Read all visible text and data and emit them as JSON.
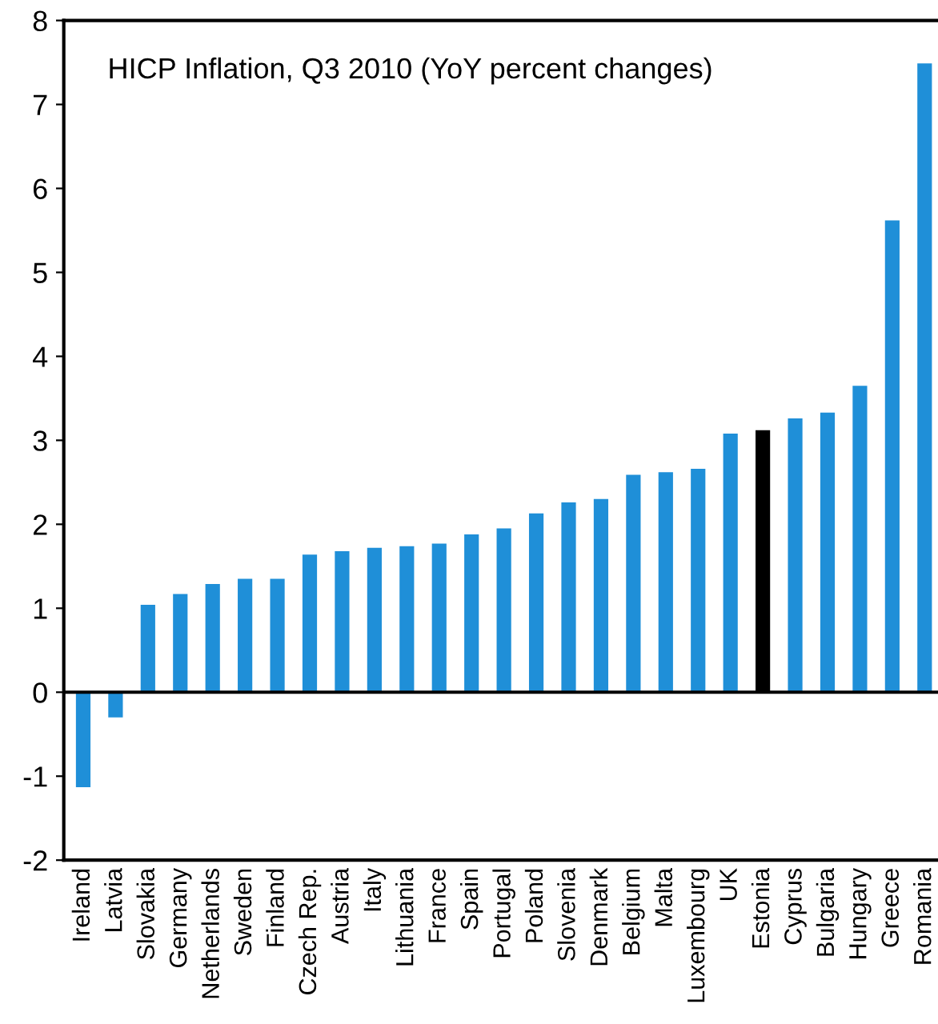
{
  "chart_data": {
    "type": "bar",
    "title": "HICP Inflation, Q3 2010 (YoY percent changes)",
    "categories": [
      "Ireland",
      "Latvia",
      "Slovakia",
      "Germany",
      "Netherlands",
      "Sweden",
      "Finland",
      "Czech Rep.",
      "Austria",
      "Italy",
      "Lithuania",
      "France",
      "Spain",
      "Portugal",
      "Poland",
      "Slovenia",
      "Denmark",
      "Belgium",
      "Malta",
      "Luxembourg",
      "UK",
      "Estonia",
      "Cyprus",
      "Bulgaria",
      "Hungary",
      "Greece",
      "Romania"
    ],
    "values": [
      -1.13,
      -0.3,
      1.04,
      1.17,
      1.29,
      1.35,
      1.35,
      1.64,
      1.68,
      1.72,
      1.74,
      1.77,
      1.88,
      1.95,
      2.13,
      2.26,
      2.3,
      2.59,
      2.62,
      2.66,
      3.08,
      3.12,
      3.26,
      3.33,
      3.65,
      5.62,
      7.49
    ],
    "colors": [
      "#1f8fd8",
      "#1f8fd8",
      "#1f8fd8",
      "#1f8fd8",
      "#1f8fd8",
      "#1f8fd8",
      "#1f8fd8",
      "#1f8fd8",
      "#1f8fd8",
      "#1f8fd8",
      "#1f8fd8",
      "#1f8fd8",
      "#1f8fd8",
      "#1f8fd8",
      "#1f8fd8",
      "#1f8fd8",
      "#1f8fd8",
      "#1f8fd8",
      "#1f8fd8",
      "#1f8fd8",
      "#1f8fd8",
      "#000000",
      "#1f8fd8",
      "#1f8fd8",
      "#1f8fd8",
      "#1f8fd8",
      "#1f8fd8"
    ],
    "ylim": [
      -2,
      8
    ],
    "yticks": [
      -2,
      -1,
      0,
      1,
      2,
      3,
      4,
      5,
      6,
      7,
      8
    ],
    "ref_lines": [
      {
        "axis": "y",
        "value": 0,
        "color": "#000000"
      }
    ]
  }
}
